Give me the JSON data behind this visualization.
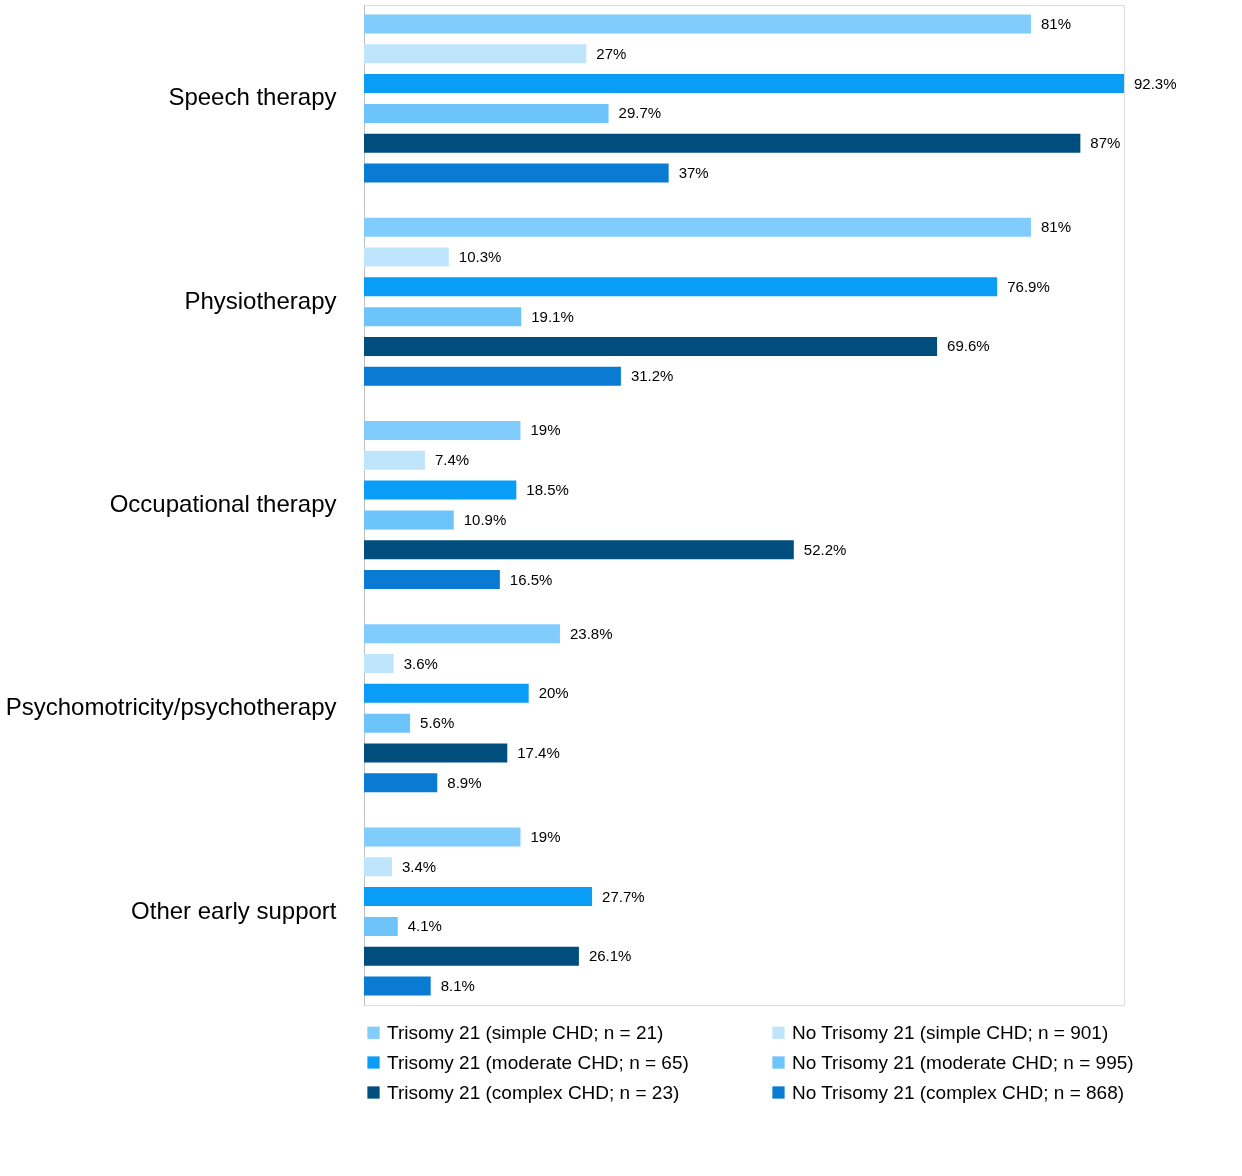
{
  "chart_data": {
    "type": "bar",
    "orientation": "horizontal",
    "categories": [
      "Speech therapy",
      "Physiotherapy",
      "Occupational therapy",
      "Psychomotricity/psychotherapy",
      "Other early support"
    ],
    "series": [
      {
        "name": "Trisomy 21 (simple CHD; n = 21)",
        "color": "#80ccfc",
        "values": [
          81,
          81,
          19,
          23.8,
          19
        ],
        "value_labels": [
          "81%",
          "81%",
          "19%",
          "23.8%",
          "19%"
        ]
      },
      {
        "name": "No Trisomy 21 (simple CHD; n = 901)",
        "color": "#bfe5fc",
        "values": [
          27,
          10.3,
          7.4,
          3.6,
          3.4
        ],
        "value_labels": [
          "27%",
          "10.3%",
          "7.4%",
          "3.6%",
          "3.4%"
        ]
      },
      {
        "name": "Trisomy 21 (moderate CHD; n = 65)",
        "color": "#0a9df8",
        "values": [
          92.3,
          76.9,
          18.5,
          20,
          27.7
        ],
        "value_labels": [
          "92.3%",
          "76.9%",
          "18.5%",
          "20%",
          "27.7%"
        ]
      },
      {
        "name": "No Trisomy 21 (moderate CHD; n = 995)",
        "color": "#6cc4fb",
        "values": [
          29.7,
          19.1,
          10.9,
          5.6,
          4.1
        ],
        "value_labels": [
          "29.7%",
          "19.1%",
          "10.9%",
          "5.6%",
          "4.1%"
        ]
      },
      {
        "name": "Trisomy 21 (complex CHD; n = 23)",
        "color": "#004e7e",
        "values": [
          87,
          69.6,
          52.2,
          17.4,
          26.1
        ],
        "value_labels": [
          "87%",
          "69.6%",
          "52.2%",
          "17.4%",
          "26.1%"
        ]
      },
      {
        "name": "No Trisomy 21 (complex CHD; n = 868)",
        "color": "#0a7bd2",
        "values": [
          37,
          31.2,
          16.5,
          8.9,
          8.1
        ],
        "value_labels": [
          "37%",
          "31.2%",
          "16.5%",
          "8.9%",
          "8.1%"
        ]
      }
    ],
    "legend": "bottom",
    "grid": false
  }
}
